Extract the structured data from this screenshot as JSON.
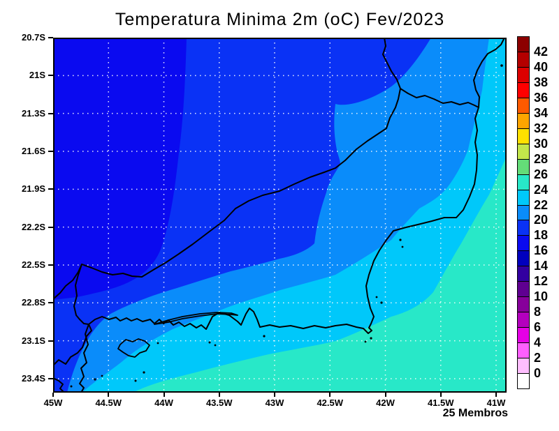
{
  "chart_data": {
    "type": "heatmap",
    "title": "Temperatura Minima 2m (oC) Fev/2023",
    "footnote": "25 Membros",
    "x_axis": {
      "tick_labels": [
        "45W",
        "44.5W",
        "44W",
        "43.5W",
        "43W",
        "42.5W",
        "42W",
        "41.5W",
        "41W"
      ]
    },
    "y_axis": {
      "tick_labels": [
        "20.7S",
        "21S",
        "21.3S",
        "21.6S",
        "21.9S",
        "22.2S",
        "22.5S",
        "22.8S",
        "23.1S",
        "23.4S"
      ]
    },
    "colorbar": {
      "tick_labels_top_to_bottom": [
        "42",
        "40",
        "38",
        "36",
        "34",
        "32",
        "30",
        "28",
        "26",
        "24",
        "22",
        "20",
        "18",
        "16",
        "14",
        "12",
        "10",
        "8",
        "6",
        "4",
        "2",
        "0"
      ],
      "segments_top_to_bottom": [
        {
          "range": ">42",
          "color": "#8c0000"
        },
        {
          "range": "40-42",
          "color": "#b40000"
        },
        {
          "range": "38-40",
          "color": "#dc0000"
        },
        {
          "range": "36-38",
          "color": "#ff0000"
        },
        {
          "range": "34-36",
          "color": "#ff5a00"
        },
        {
          "range": "32-34",
          "color": "#ffa500"
        },
        {
          "range": "30-32",
          "color": "#ffe100"
        },
        {
          "range": "28-30",
          "color": "#c3e64b"
        },
        {
          "range": "26-28",
          "color": "#64dc78"
        },
        {
          "range": "24-26",
          "color": "#28e8c8"
        },
        {
          "range": "22-24",
          "color": "#00c8fa"
        },
        {
          "range": "20-22",
          "color": "#0a8cfa"
        },
        {
          "range": "18-20",
          "color": "#0a32f5"
        },
        {
          "range": "16-18",
          "color": "#0a0af0"
        },
        {
          "range": "14-16",
          "color": "#0000be"
        },
        {
          "range": "12-14",
          "color": "#3200a0"
        },
        {
          "range": "10-12",
          "color": "#5f0091"
        },
        {
          "range": "8-10",
          "color": "#87009b"
        },
        {
          "range": "6-8",
          "color": "#b400be"
        },
        {
          "range": "4-6",
          "color": "#e600e6"
        },
        {
          "range": "2-4",
          "color": "#ff5fff"
        },
        {
          "range": "0-2",
          "color": "#ffbeff"
        },
        {
          "range": "<0",
          "color": "#ffffff"
        }
      ]
    },
    "map_bands": [
      {
        "range": "16-18",
        "color": "#0a0af0"
      },
      {
        "range": "18-20",
        "color": "#0a32f5"
      },
      {
        "range": "20-22",
        "color": "#0a8cfa"
      },
      {
        "range": "22-24",
        "color": "#00c8fa"
      },
      {
        "range": "24-26",
        "color": "#28e8c8"
      }
    ],
    "grid_color": "#ffffff",
    "outline_color": "#000000"
  }
}
